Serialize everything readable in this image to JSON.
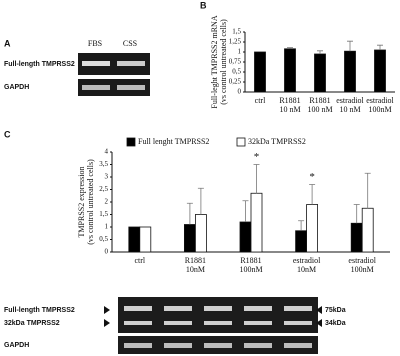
{
  "blots": {
    "panel_a": {
      "label": "A",
      "lanes": [
        "FBS",
        "CSS"
      ],
      "rows": [
        "Full-length TMPRSS2",
        "GAPDH"
      ]
    },
    "panel_c": {
      "rows": [
        "Full-length TMPRSS2",
        "32kDa TMPRSS2",
        "GAPDH"
      ],
      "sizes": [
        "75kDa",
        "34kDa"
      ]
    }
  },
  "chart_data": [
    {
      "type": "bar",
      "panel": "B",
      "ylabel": [
        "Full-leght TMPRSS2 mRNA",
        "(vs control untreated cells)"
      ],
      "categories": [
        "ctrl",
        "R1881 10 nM",
        "R1881 100 nM",
        "estradiol 10 nM",
        "estradiol 100nM"
      ],
      "series": [
        {
          "color": "#000000",
          "values": [
            1.0,
            1.08,
            0.95,
            1.02,
            1.05
          ],
          "errors": [
            0,
            0.03,
            0.08,
            0.25,
            0.12
          ]
        }
      ],
      "ylim": [
        0,
        1.5
      ],
      "yticks": [
        0,
        {
          "value": 0.25,
          "label": "0,25"
        },
        {
          "value": 0.5,
          "label": "0,5"
        },
        {
          "value": 0.75,
          "label": "0,75"
        },
        1,
        {
          "value": 1.25,
          "label": "1,25"
        },
        {
          "value": 1.5,
          "label": "1,5"
        }
      ]
    },
    {
      "type": "bar",
      "panel": "C",
      "ylabel": [
        "TMPRSS2 expression",
        "(vs control untreated cells)"
      ],
      "categories": [
        "ctrl",
        "R1881 10nM",
        "R1881 100nM",
        "estradiol 10nM",
        "estradiol 100nM"
      ],
      "series": [
        {
          "name": "Full lenght TMPRSS2",
          "color": "#000000",
          "values": [
            1.0,
            1.1,
            1.2,
            0.85,
            1.15
          ],
          "errors": [
            0,
            0.85,
            0.85,
            0.4,
            0.75
          ]
        },
        {
          "name": "32kDa TMPRSS2",
          "color": "#ffffff",
          "values": [
            1.0,
            1.5,
            2.35,
            1.9,
            1.75
          ],
          "errors": [
            0,
            1.05,
            1.15,
            0.8,
            1.4
          ],
          "annotations": [
            null,
            null,
            "*",
            "*",
            null
          ]
        }
      ],
      "ylim": [
        0,
        4
      ],
      "yticks": [
        0,
        {
          "value": 0.5,
          "label": "0,5"
        },
        1,
        {
          "value": 1.5,
          "label": "1,5"
        },
        2,
        {
          "value": 2.5,
          "label": "2,5"
        },
        3,
        {
          "value": 3.5,
          "label": "3,5"
        },
        4
      ]
    }
  ]
}
